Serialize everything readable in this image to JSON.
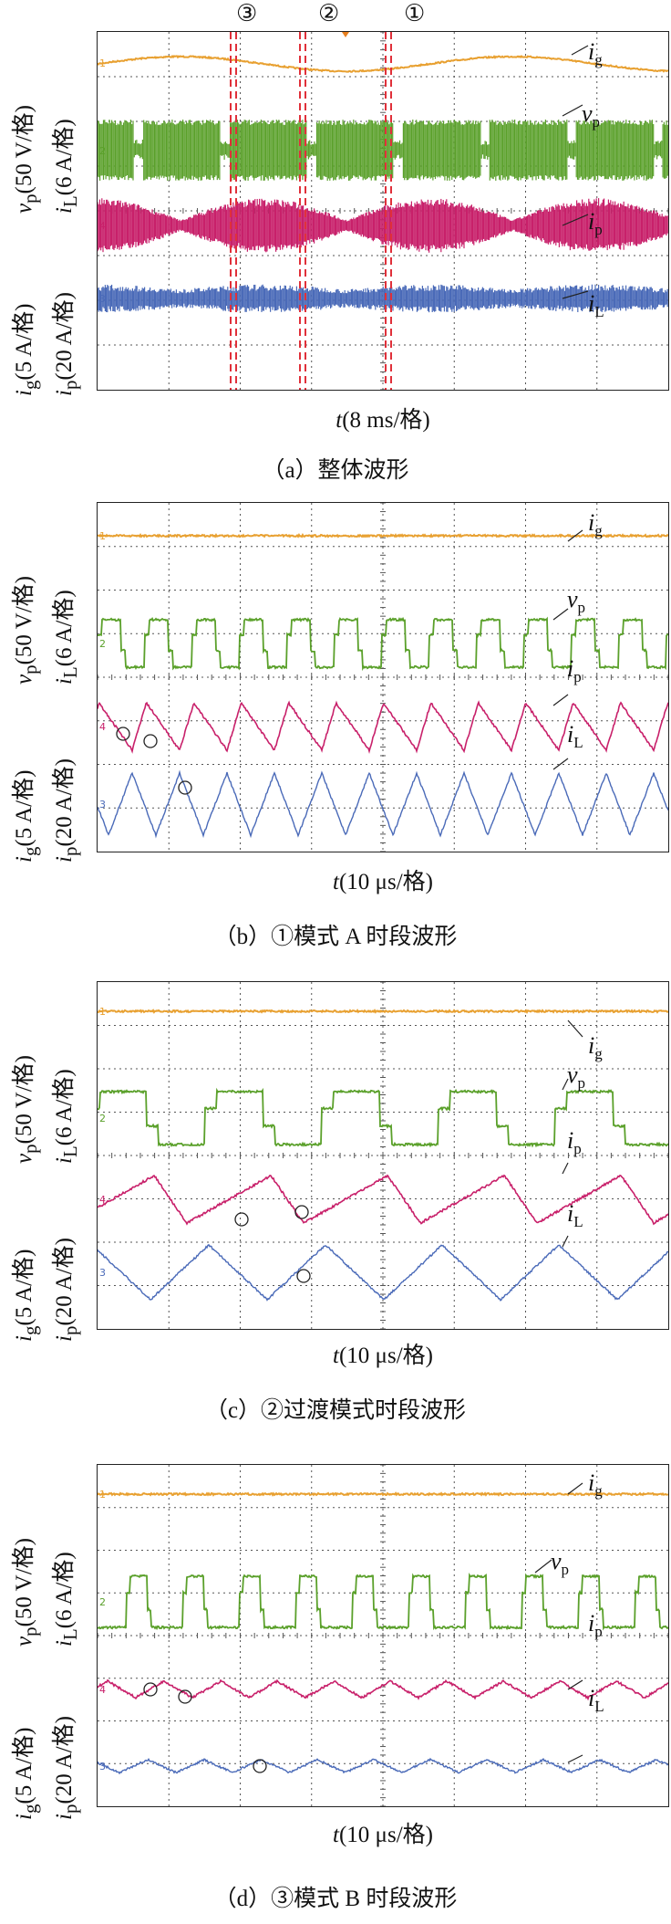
{
  "markers": [
    "③",
    "②",
    "①"
  ],
  "axis_left_upper": "vp(50 V/格)  iL(6 A/格)",
  "axis_left_upper_parts": {
    "a": "v",
    "a_sub": "p",
    "a_rest": "(50 V/格)",
    "b": "i",
    "b_sub": "L",
    "b_rest": "(6 A/格)"
  },
  "axis_left_lower_parts": {
    "a": "i",
    "a_sub": "g",
    "a_rest": "(5 A/格)",
    "b": "i",
    "b_sub": "p",
    "b_rest": "(20 A/格)"
  },
  "signals": {
    "ig": {
      "sym": "i",
      "sub": "g",
      "color": "#e8a030"
    },
    "vp": {
      "sym": "v",
      "sub": "p",
      "color": "#5aa02a"
    },
    "ip": {
      "sym": "i",
      "sub": "p",
      "color": "#c8206a"
    },
    "iL": {
      "sym": "i",
      "sub": "L",
      "color": "#4a6ab8"
    }
  },
  "channel_tags": {
    "ig": "1",
    "vp": "2",
    "ip": "4",
    "iL": "3"
  },
  "panels": [
    {
      "id": "a",
      "time_label": "t(8 ms/格)",
      "time_sym": "t",
      "time_rest": "(8 ms/格)",
      "caption": "（a）整体波形"
    },
    {
      "id": "b",
      "time_label": "t(10 μs/格)",
      "time_sym": "t",
      "time_rest": "(10 μs/格)",
      "caption": "（b）①模式 A 时段波形"
    },
    {
      "id": "c",
      "time_label": "t(10 μs/格)",
      "time_sym": "t",
      "time_rest": "(10 μs/格)",
      "caption": "（c）②过渡模式时段波形"
    },
    {
      "id": "d",
      "time_label": "t(10 μs/格)",
      "time_sym": "t",
      "time_rest": "(10 μs/格)",
      "caption": "（d）③模式 B 时段波形"
    }
  ]
}
